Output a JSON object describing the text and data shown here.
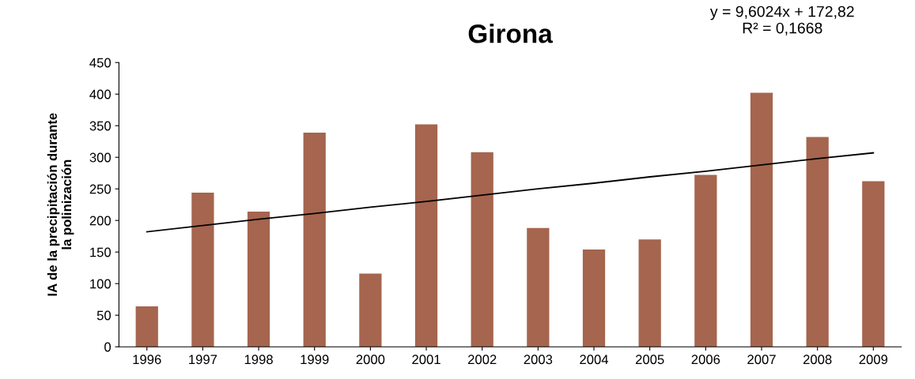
{
  "chart_data": {
    "type": "bar",
    "title": "Girona",
    "ylabel": "IA de la precipitación durante\nla polinización",
    "categories": [
      "1996",
      "1997",
      "1998",
      "1999",
      "2000",
      "2001",
      "2002",
      "2003",
      "2004",
      "2005",
      "2006",
      "2007",
      "2008",
      "2009"
    ],
    "series": [
      {
        "color": "#a5654e",
        "values": [
          64,
          244,
          214,
          339,
          116,
          352,
          308,
          188,
          154,
          170,
          272,
          402,
          332,
          262
        ]
      },
      {
        "type": "line",
        "color": "#000000",
        "values": [
          182,
          192,
          202,
          211,
          221,
          230,
          240,
          250,
          259,
          269,
          278,
          288,
          298,
          307
        ]
      }
    ],
    "ylim": [
      0,
      450
    ],
    "yticks": [
      0,
      50,
      100,
      150,
      200,
      250,
      300,
      350,
      400,
      450
    ],
    "annotations": [
      "y = 9,6024x + 172,82\nR² = 0,1668"
    ]
  }
}
